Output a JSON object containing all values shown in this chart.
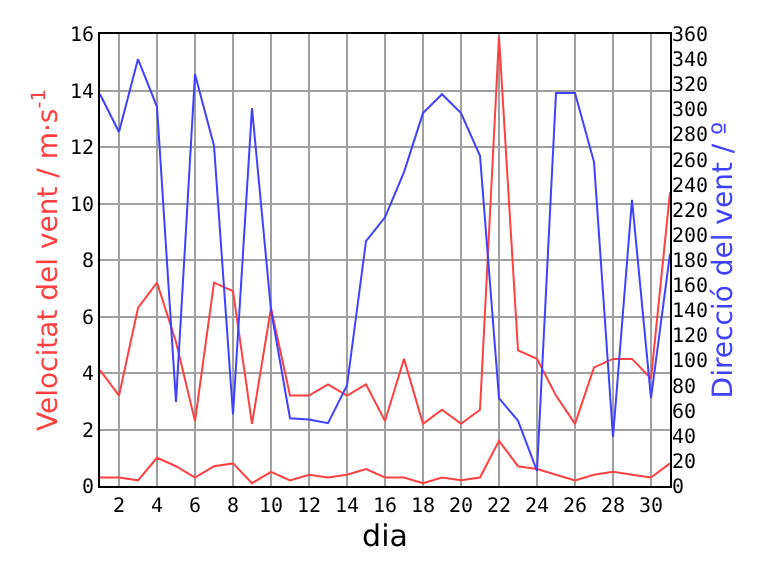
{
  "chart_data": {
    "type": "line",
    "xlabel": "dia",
    "ylabel": "Velocitat del vent / m·s$^{-1}$",
    "y2label": "Direcció del vent / º",
    "x": [
      1,
      2,
      3,
      4,
      5,
      6,
      7,
      8,
      9,
      10,
      11,
      12,
      13,
      14,
      15,
      16,
      17,
      18,
      19,
      20,
      21,
      22,
      23,
      24,
      25,
      26,
      27,
      28,
      29,
      30,
      31
    ],
    "series": [
      {
        "color": "#ff4040",
        "values": [
          4.1,
          3.2,
          6.3,
          7.2,
          5.1,
          2.3,
          7.2,
          6.9,
          2.2,
          6.3,
          3.2,
          3.2,
          3.6,
          3.2,
          3.6,
          2.3,
          4.5,
          2.2,
          2.7,
          2.2,
          2.7,
          15.9,
          4.8,
          4.5,
          3.2,
          2.2,
          4.2,
          4.5,
          4.5,
          3.8,
          10.4
        ]
      },
      {
        "color": "#ff4040",
        "values": [
          0.3,
          0.3,
          0.2,
          1.0,
          0.7,
          0.3,
          0.7,
          0.8,
          0.1,
          0.5,
          0.2,
          0.4,
          0.3,
          0.4,
          0.6,
          0.3,
          0.3,
          0.1,
          0.3,
          0.2,
          0.3,
          1.6,
          0.7,
          0.6,
          0.4,
          0.2,
          0.4,
          0.5,
          0.4,
          0.3,
          0.8
        ]
      },
      {
        "color": "#4040ff",
        "axis": "y2",
        "values": [
          312,
          282,
          340,
          302,
          67,
          328,
          271,
          57,
          301,
          140,
          54,
          53,
          50,
          80,
          195,
          214,
          250,
          297,
          312,
          297,
          263,
          70,
          52,
          12,
          313,
          313,
          258,
          39,
          228,
          70,
          185
        ]
      }
    ],
    "xlim": [
      1,
      31
    ],
    "xticks": [
      2,
      4,
      6,
      8,
      10,
      12,
      14,
      16,
      18,
      20,
      22,
      24,
      26,
      28,
      30
    ],
    "ylim": [
      0,
      16
    ],
    "yticks": [
      0,
      2,
      4,
      6,
      8,
      10,
      12,
      14,
      16
    ],
    "y2lim": [
      0,
      360
    ],
    "y2ticks": [
      0,
      20,
      40,
      60,
      80,
      100,
      120,
      140,
      160,
      180,
      200,
      220,
      240,
      260,
      280,
      300,
      320,
      340,
      360
    ],
    "grid": true
  }
}
